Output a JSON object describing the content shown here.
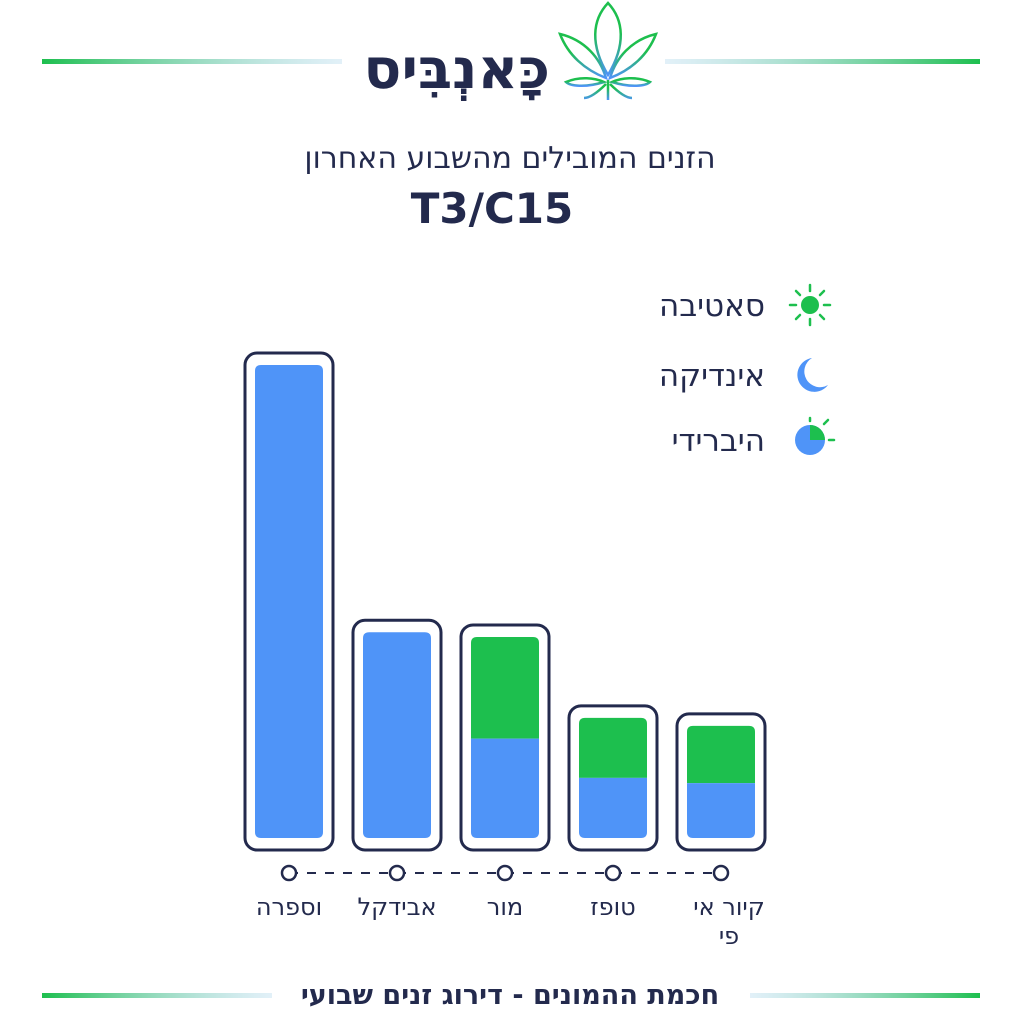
{
  "brand": {
    "name": "כָּאנְבִּיס",
    "logo": "cannabis-leaf-logo"
  },
  "colors": {
    "sativa": "#1dbf4e",
    "indica": "#4f94f8",
    "outline": "#232a4d",
    "line_green": "#1dbf4e",
    "line_blue": "#8fc3e6"
  },
  "footer": {
    "text": "חכמת ההמונים - דירוג זנים שבועי"
  },
  "chart_data": {
    "type": "bar",
    "stacked": true,
    "title": "הזנים המובילים מהשבוע האחרון",
    "subtitle": "T3/C15",
    "legend_position": "top-right",
    "legend": [
      {
        "name": "סאטיבה",
        "icon": "sun-icon"
      },
      {
        "name": "אינדיקה",
        "icon": "moon-icon"
      },
      {
        "name": "היברידי",
        "icon": "hybrid-sun-moon-icon"
      }
    ],
    "categories": [
      "וספרה",
      "אבידקל",
      "מור",
      "טופז",
      "קיור אי פי"
    ],
    "series": [
      {
        "name": "אינדיקה",
        "values": [
          100,
          43.5,
          21,
          12.7,
          11.6
        ]
      },
      {
        "name": "סאטיבה",
        "values": [
          0,
          0,
          21.5,
          12.7,
          12.1
        ]
      }
    ],
    "ylim": [
      0,
      100
    ],
    "grid": false
  }
}
